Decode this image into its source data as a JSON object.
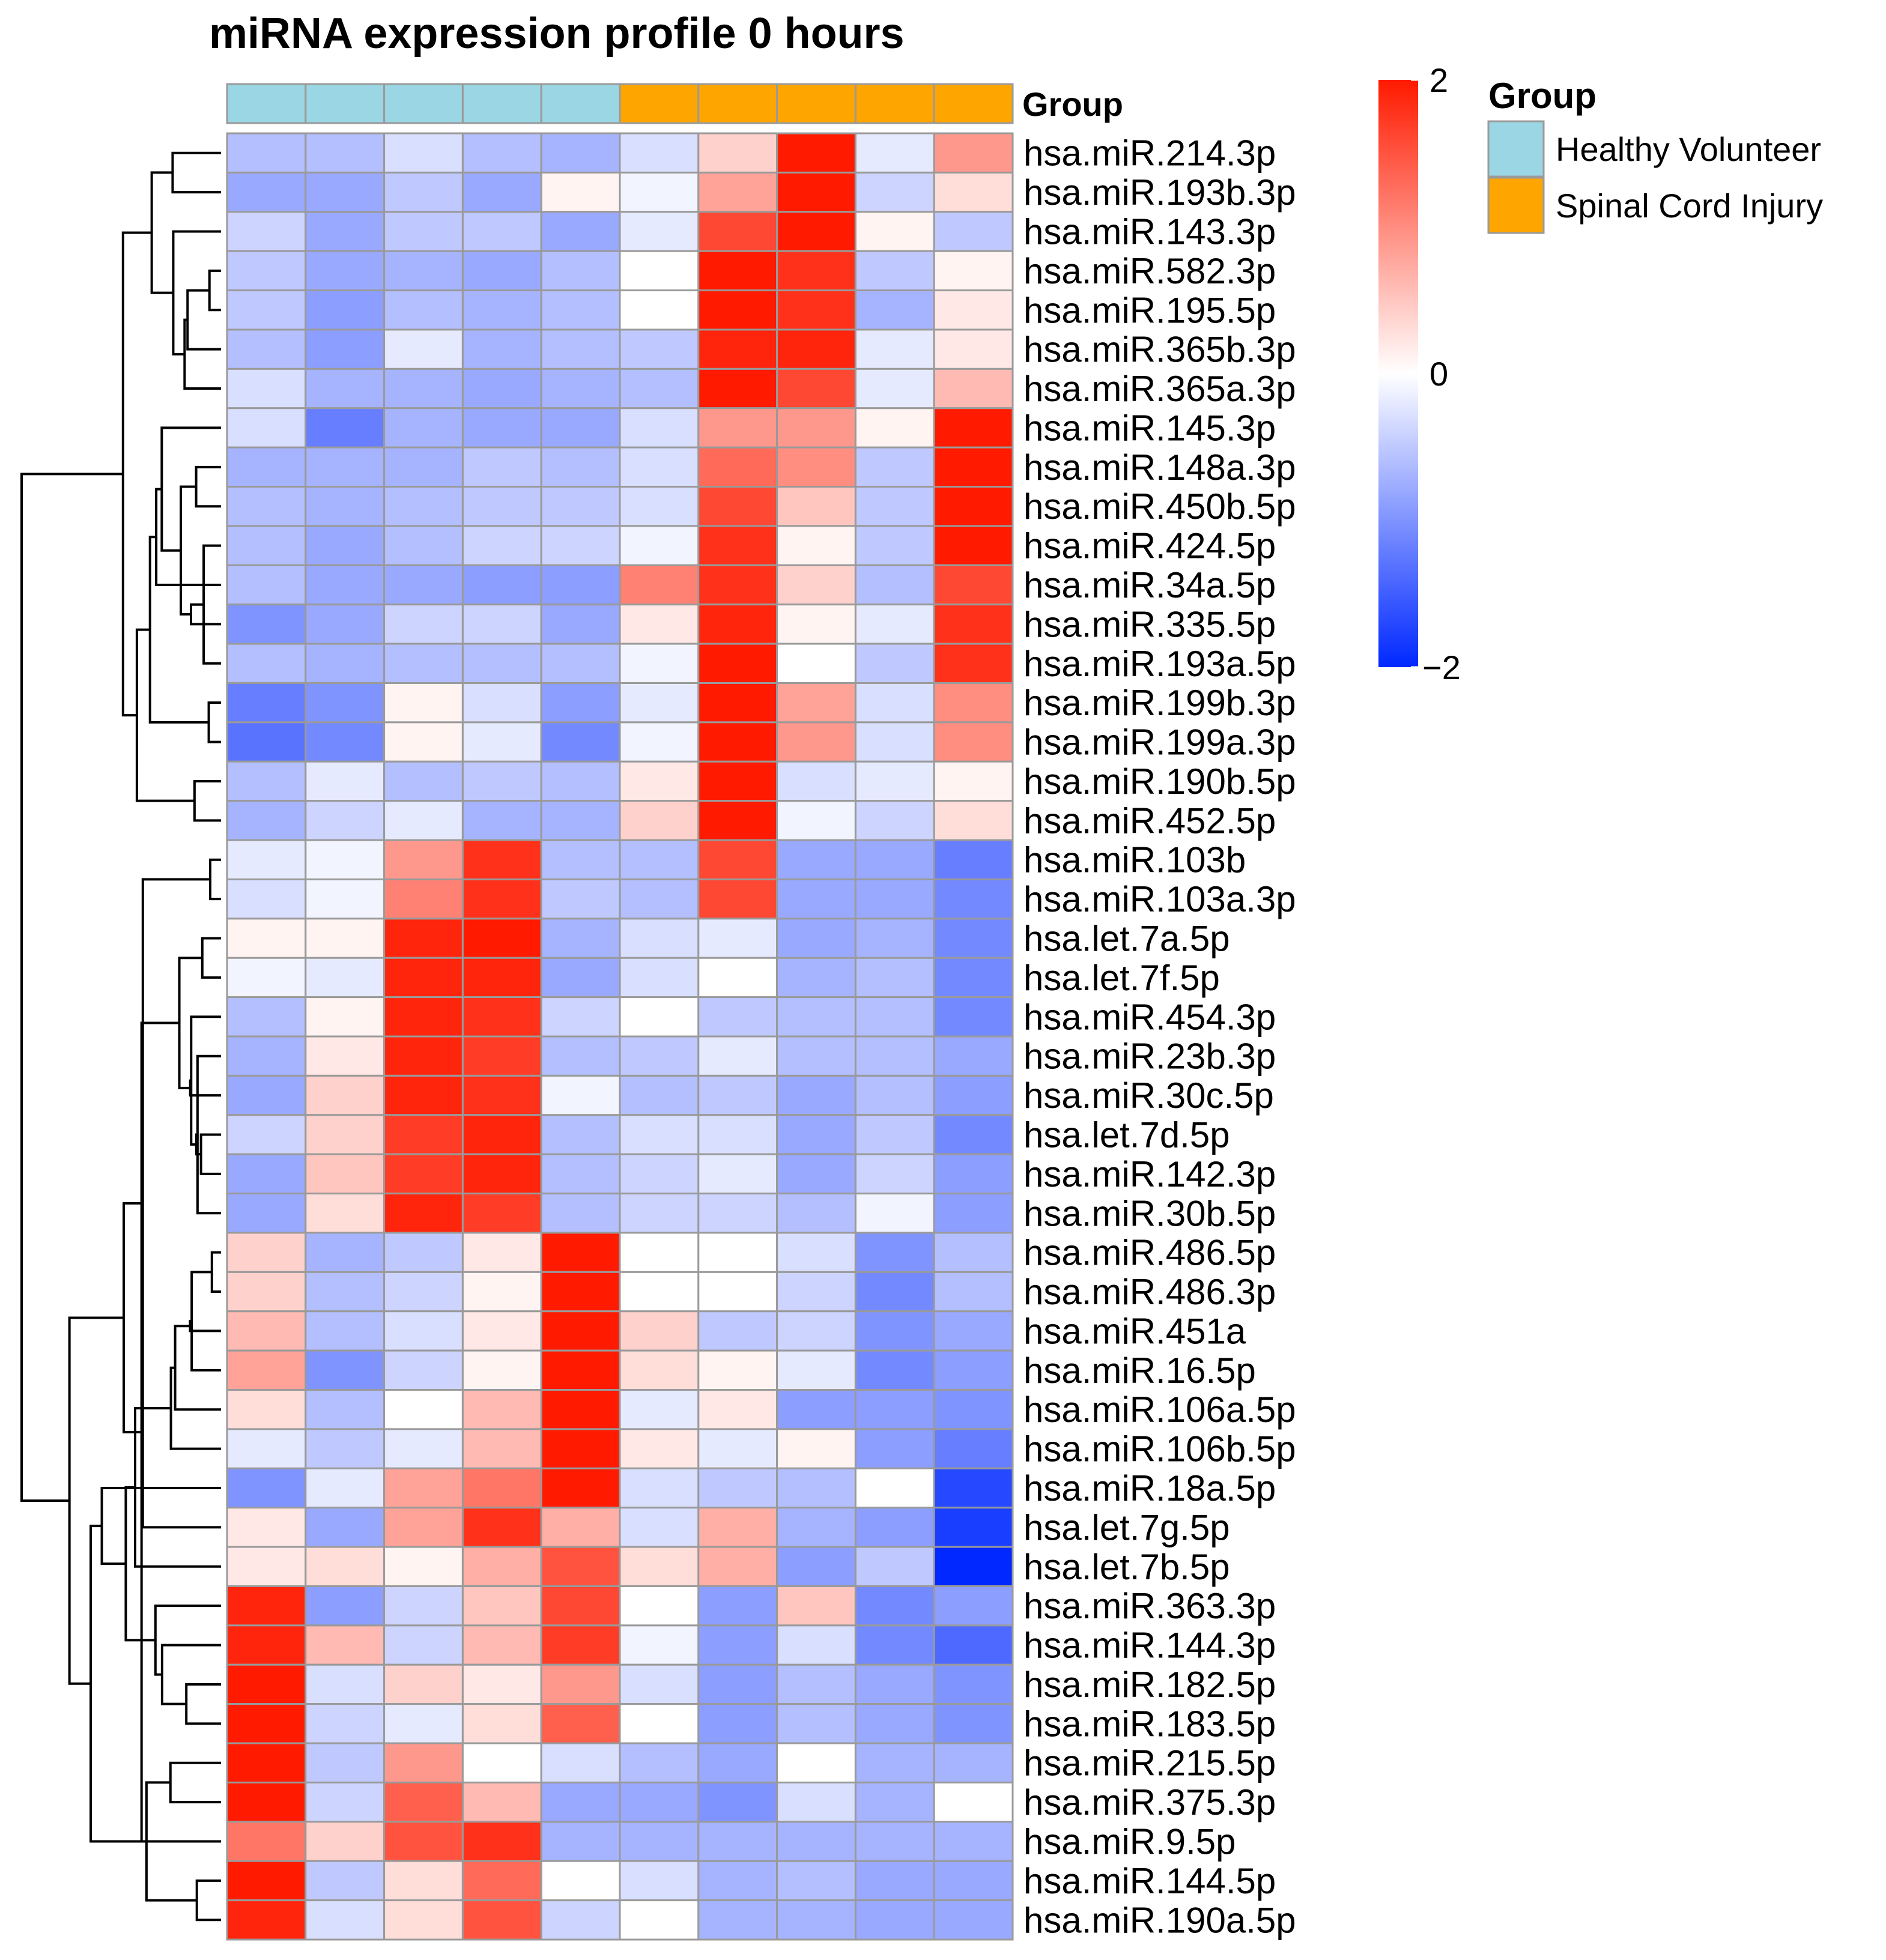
{
  "chart_data": {
    "type": "heatmap",
    "title": "miRNA expression profile 0 hours",
    "annotation": {
      "label": "Group",
      "columns": [
        "Healthy Volunteer",
        "Healthy Volunteer",
        "Healthy Volunteer",
        "Healthy Volunteer",
        "Healthy Volunteer",
        "Spinal Cord Injury",
        "Spinal Cord Injury",
        "Spinal Cord Injury",
        "Spinal Cord Injury",
        "Spinal Cord Injury"
      ]
    },
    "legend": {
      "title": "Group",
      "placement": "right",
      "items": [
        {
          "label": "Healthy Volunteer",
          "color": "#9ad6e4"
        },
        {
          "label": "Spinal Cord Injury",
          "color": "#ffa500"
        }
      ]
    },
    "color_scale": {
      "min": -2,
      "mid": 0,
      "max": 2,
      "low_color": "#0028ff",
      "mid_color": "#ffffff",
      "high_color": "#ff1a00",
      "tick_labels": [
        "2",
        "0",
        "−2"
      ]
    },
    "cell_border_color": "#9a9a9a",
    "rows": [
      "hsa.miR.214.3p",
      "hsa.miR.193b.3p",
      "hsa.miR.143.3p",
      "hsa.miR.582.3p",
      "hsa.miR.195.5p",
      "hsa.miR.365b.3p",
      "hsa.miR.365a.3p",
      "hsa.miR.145.3p",
      "hsa.miR.148a.3p",
      "hsa.miR.450b.5p",
      "hsa.miR.424.5p",
      "hsa.miR.34a.5p",
      "hsa.miR.335.5p",
      "hsa.miR.193a.5p",
      "hsa.miR.199b.3p",
      "hsa.miR.199a.3p",
      "hsa.miR.190b.5p",
      "hsa.miR.452.5p",
      "hsa.miR.103b",
      "hsa.miR.103a.3p",
      "hsa.let.7a.5p",
      "hsa.let.7f.5p",
      "hsa.miR.454.3p",
      "hsa.miR.23b.3p",
      "hsa.miR.30c.5p",
      "hsa.let.7d.5p",
      "hsa.miR.142.3p",
      "hsa.miR.30b.5p",
      "hsa.miR.486.5p",
      "hsa.miR.486.3p",
      "hsa.miR.451a",
      "hsa.miR.16.5p",
      "hsa.miR.106a.5p",
      "hsa.miR.106b.5p",
      "hsa.miR.18a.5p",
      "hsa.let.7g.5p",
      "hsa.let.7b.5p",
      "hsa.miR.363.3p",
      "hsa.miR.144.3p",
      "hsa.miR.182.5p",
      "hsa.miR.183.5p",
      "hsa.miR.215.5p",
      "hsa.miR.375.3p",
      "hsa.miR.9.5p",
      "hsa.miR.144.5p",
      "hsa.miR.190a.5p"
    ],
    "values": [
      [
        -0.6,
        -0.6,
        -0.3,
        -0.6,
        -0.7,
        -0.3,
        0.4,
        2.0,
        -0.2,
        0.9
      ],
      [
        -0.8,
        -0.8,
        -0.5,
        -0.8,
        0.1,
        -0.1,
        0.8,
        2.0,
        -0.4,
        0.3
      ],
      [
        -0.4,
        -0.8,
        -0.5,
        -0.5,
        -0.8,
        -0.2,
        1.6,
        2.0,
        0.1,
        -0.5
      ],
      [
        -0.5,
        -0.8,
        -0.7,
        -0.8,
        -0.6,
        0.0,
        2.0,
        1.8,
        -0.5,
        0.1
      ],
      [
        -0.5,
        -0.9,
        -0.6,
        -0.7,
        -0.6,
        0.0,
        2.0,
        1.8,
        -0.7,
        0.2
      ],
      [
        -0.6,
        -0.9,
        -0.2,
        -0.7,
        -0.6,
        -0.5,
        1.9,
        1.9,
        -0.2,
        0.2
      ],
      [
        -0.3,
        -0.7,
        -0.7,
        -0.8,
        -0.7,
        -0.6,
        2.0,
        1.6,
        -0.2,
        0.6
      ],
      [
        -0.3,
        -1.2,
        -0.7,
        -0.8,
        -0.8,
        -0.3,
        0.9,
        0.9,
        0.1,
        2.0
      ],
      [
        -0.7,
        -0.7,
        -0.7,
        -0.5,
        -0.6,
        -0.3,
        1.3,
        1.0,
        -0.5,
        2.0
      ],
      [
        -0.6,
        -0.7,
        -0.6,
        -0.5,
        -0.5,
        -0.3,
        1.6,
        0.5,
        -0.5,
        2.0
      ],
      [
        -0.6,
        -0.8,
        -0.6,
        -0.4,
        -0.4,
        -0.1,
        1.8,
        0.1,
        -0.5,
        2.0
      ],
      [
        -0.6,
        -0.8,
        -0.8,
        -0.9,
        -0.9,
        1.1,
        1.8,
        0.4,
        -0.6,
        1.6
      ],
      [
        -1.0,
        -0.8,
        -0.4,
        -0.4,
        -0.8,
        0.2,
        1.9,
        0.1,
        -0.2,
        1.8
      ],
      [
        -0.6,
        -0.7,
        -0.6,
        -0.6,
        -0.6,
        -0.1,
        2.0,
        0.0,
        -0.5,
        1.8
      ],
      [
        -1.2,
        -1.0,
        0.1,
        -0.3,
        -0.9,
        -0.2,
        2.0,
        0.8,
        -0.3,
        1.0
      ],
      [
        -1.3,
        -1.1,
        0.1,
        -0.2,
        -1.1,
        -0.1,
        2.0,
        0.9,
        -0.3,
        1.0
      ],
      [
        -0.6,
        -0.2,
        -0.6,
        -0.5,
        -0.6,
        0.2,
        2.0,
        -0.3,
        -0.2,
        0.1
      ],
      [
        -0.7,
        -0.4,
        -0.2,
        -0.7,
        -0.7,
        0.4,
        2.0,
        -0.1,
        -0.4,
        0.3
      ],
      [
        -0.2,
        -0.1,
        0.9,
        1.8,
        -0.6,
        -0.6,
        1.6,
        -0.8,
        -0.8,
        -1.2
      ],
      [
        -0.3,
        -0.1,
        1.1,
        1.8,
        -0.5,
        -0.6,
        1.6,
        -0.8,
        -0.8,
        -1.1
      ],
      [
        0.1,
        0.1,
        1.9,
        2.0,
        -0.7,
        -0.3,
        -0.2,
        -0.8,
        -0.7,
        -1.1
      ],
      [
        -0.1,
        -0.2,
        1.9,
        1.9,
        -0.8,
        -0.3,
        0.0,
        -0.7,
        -0.6,
        -1.1
      ],
      [
        -0.6,
        0.1,
        1.9,
        1.8,
        -0.4,
        0.0,
        -0.5,
        -0.6,
        -0.6,
        -1.1
      ],
      [
        -0.7,
        0.2,
        1.9,
        1.7,
        -0.6,
        -0.5,
        -0.2,
        -0.6,
        -0.6,
        -0.8
      ],
      [
        -0.8,
        0.4,
        1.9,
        1.8,
        -0.1,
        -0.6,
        -0.5,
        -0.8,
        -0.6,
        -0.9
      ],
      [
        -0.4,
        0.4,
        1.7,
        1.9,
        -0.6,
        -0.3,
        -0.3,
        -0.8,
        -0.5,
        -1.1
      ],
      [
        -0.8,
        0.5,
        1.7,
        1.9,
        -0.6,
        -0.4,
        -0.2,
        -0.8,
        -0.4,
        -0.9
      ],
      [
        -0.8,
        0.3,
        1.9,
        1.7,
        -0.6,
        -0.4,
        -0.4,
        -0.6,
        -0.1,
        -0.9
      ],
      [
        0.4,
        -0.7,
        -0.5,
        0.2,
        2.0,
        0.0,
        0.0,
        -0.3,
        -1.0,
        -0.6
      ],
      [
        0.4,
        -0.6,
        -0.4,
        0.1,
        2.0,
        0.0,
        0.0,
        -0.4,
        -1.1,
        -0.6
      ],
      [
        0.6,
        -0.6,
        -0.3,
        0.2,
        2.0,
        0.4,
        -0.5,
        -0.4,
        -1.0,
        -0.8
      ],
      [
        0.8,
        -1.0,
        -0.4,
        0.1,
        2.0,
        0.3,
        0.1,
        -0.2,
        -1.1,
        -0.9
      ],
      [
        0.3,
        -0.6,
        0.0,
        0.6,
        2.0,
        -0.2,
        0.2,
        -0.9,
        -0.9,
        -1.0
      ],
      [
        -0.2,
        -0.5,
        -0.2,
        0.6,
        2.0,
        0.2,
        -0.2,
        0.1,
        -0.9,
        -1.2
      ],
      [
        -1.0,
        -0.2,
        0.8,
        1.2,
        2.0,
        -0.3,
        -0.5,
        -0.6,
        0.0,
        -1.7
      ],
      [
        0.2,
        -0.8,
        0.8,
        1.8,
        0.7,
        -0.3,
        0.7,
        -0.7,
        -0.9,
        -1.8
      ],
      [
        0.2,
        0.3,
        0.1,
        0.7,
        1.5,
        0.3,
        0.7,
        -0.9,
        -0.5,
        -2.0
      ],
      [
        1.9,
        -0.9,
        -0.4,
        0.5,
        1.6,
        0.0,
        -0.9,
        0.5,
        -1.1,
        -0.9
      ],
      [
        1.9,
        0.6,
        -0.4,
        0.6,
        1.7,
        -0.1,
        -0.9,
        -0.3,
        -1.1,
        -1.4
      ],
      [
        2.0,
        -0.3,
        0.4,
        0.2,
        0.9,
        -0.3,
        -0.9,
        -0.6,
        -0.8,
        -1.0
      ],
      [
        2.0,
        -0.4,
        -0.2,
        0.3,
        1.4,
        0.0,
        -0.9,
        -0.6,
        -0.8,
        -1.0
      ],
      [
        2.0,
        -0.5,
        0.9,
        0.0,
        -0.3,
        -0.6,
        -0.8,
        0.0,
        -0.7,
        -0.7
      ],
      [
        2.0,
        -0.4,
        1.4,
        0.6,
        -0.8,
        -0.8,
        -1.0,
        -0.3,
        -0.7,
        0.0
      ],
      [
        1.2,
        0.4,
        1.5,
        1.8,
        -0.7,
        -0.7,
        -0.7,
        -0.7,
        -0.7,
        -0.7
      ],
      [
        2.0,
        -0.5,
        0.3,
        1.3,
        0.0,
        -0.3,
        -0.7,
        -0.6,
        -0.8,
        -0.8
      ],
      [
        1.9,
        -0.3,
        0.3,
        1.5,
        -0.4,
        0.0,
        -0.7,
        -0.7,
        -0.8,
        -0.8
      ]
    ]
  }
}
